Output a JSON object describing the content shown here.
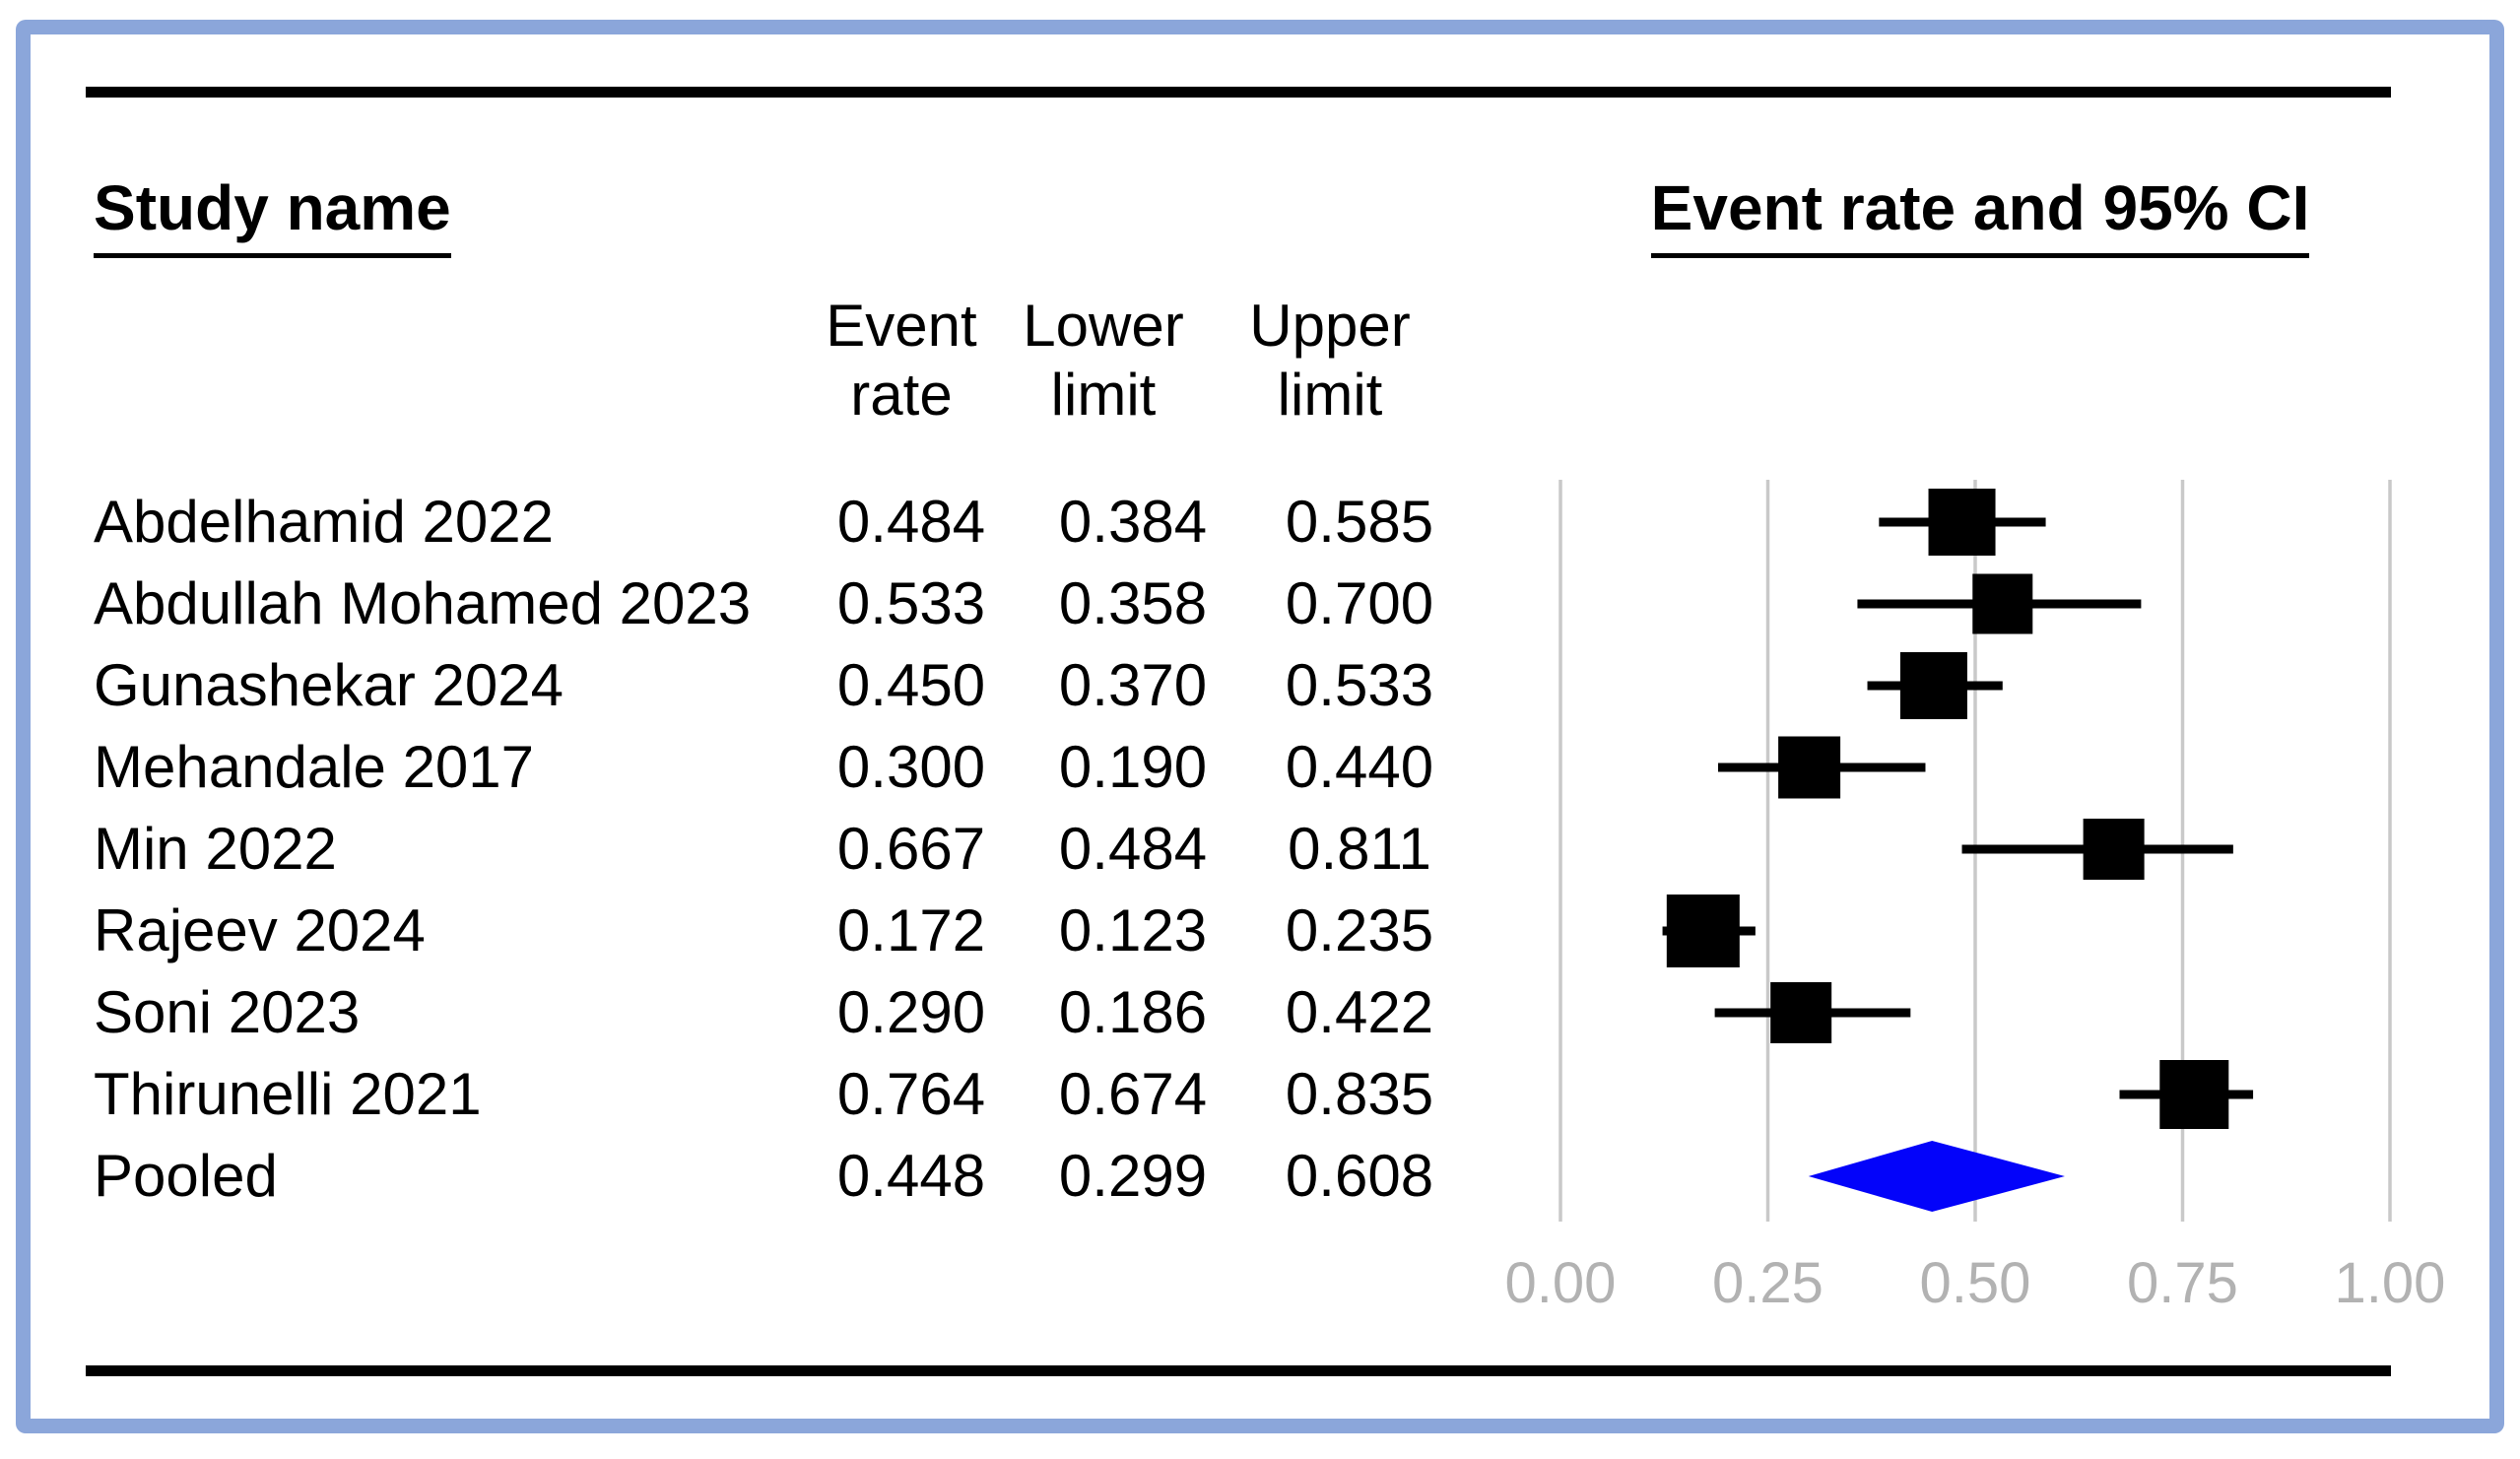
{
  "figure": {
    "border_color": "#8ba6da",
    "background_color": "#ffffff",
    "study_header": "Study name",
    "plot_header": "Event rate and 95% CI",
    "column_headers": {
      "event": [
        "Event",
        "rate"
      ],
      "lower": [
        "Lower",
        "limit"
      ],
      "upper": [
        "Upper",
        "limit"
      ]
    }
  },
  "chart_data": {
    "type": "forest",
    "title": "Event rate and 95% CI",
    "x_axis": {
      "range": [
        0,
        1
      ],
      "tick_values": [
        0,
        0.25,
        0.5,
        0.75,
        1
      ],
      "tick_labels": [
        "0.00",
        "0.25",
        "0.50",
        "0.75",
        "1.00"
      ],
      "grid": true
    },
    "studies": [
      {
        "name": "Abdelhamid 2022",
        "event_rate": "0.484",
        "lower_limit": "0.384",
        "upper_limit": "0.585",
        "marker_size": 68
      },
      {
        "name": "Abdullah Mohamed 2023",
        "event_rate": "0.533",
        "lower_limit": "0.358",
        "upper_limit": "0.700",
        "marker_size": 61
      },
      {
        "name": "Gunashekar 2024",
        "event_rate": "0.450",
        "lower_limit": "0.370",
        "upper_limit": "0.533",
        "marker_size": 68
      },
      {
        "name": "Mehandale 2017",
        "event_rate": "0.300",
        "lower_limit": "0.190",
        "upper_limit": "0.440",
        "marker_size": 63
      },
      {
        "name": "Min 2022",
        "event_rate": "0.667",
        "lower_limit": "0.484",
        "upper_limit": "0.811",
        "marker_size": 62
      },
      {
        "name": "Rajeev 2024",
        "event_rate": "0.172",
        "lower_limit": "0.123",
        "upper_limit": "0.235",
        "marker_size": 74
      },
      {
        "name": "Soni 2023",
        "event_rate": "0.290",
        "lower_limit": "0.186",
        "upper_limit": "0.422",
        "marker_size": 62
      },
      {
        "name": "Thirunelli 2021",
        "event_rate": "0.764",
        "lower_limit": "0.674",
        "upper_limit": "0.835",
        "marker_size": 70
      }
    ],
    "pooled": {
      "name": "Pooled",
      "event_rate": "0.448",
      "lower_limit": "0.299",
      "upper_limit": "0.608"
    },
    "styles": {
      "marker_color": "#000000",
      "ci_line_color": "#000000",
      "diamond_color": "#0303fa",
      "gridline_color": "#c9c9c9",
      "tick_label_color": "#b2b2b2"
    }
  }
}
